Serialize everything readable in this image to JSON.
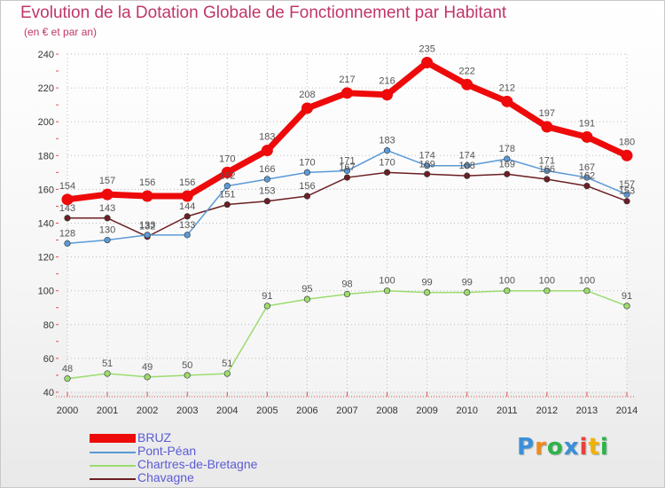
{
  "chart_data": {
    "type": "line",
    "title": "Evolution de la Dotation Globale de Fonctionnement par Habitant",
    "subtitle": "(en € et par an)",
    "xlabel": "",
    "ylabel": "",
    "x": [
      "2000",
      "2001",
      "2002",
      "2003",
      "2004",
      "2005",
      "2006",
      "2007",
      "2008",
      "2009",
      "2010",
      "2011",
      "2012",
      "2013",
      "2014"
    ],
    "ylim": [
      40,
      240
    ],
    "yticks": [
      40,
      60,
      80,
      100,
      120,
      140,
      160,
      180,
      200,
      220,
      240
    ],
    "grid": true,
    "legend_position": "bottom-left",
    "series": [
      {
        "name": "Chavagne",
        "color": "#6b1f24",
        "values": [
          143,
          143,
          132,
          144,
          151,
          153,
          156,
          167,
          170,
          169,
          168,
          169,
          166,
          162,
          153
        ],
        "labels": [
          "143",
          "143",
          "132",
          "144",
          "151",
          "153",
          "156",
          "167",
          "170",
          "169",
          "168",
          "169",
          "166",
          "162",
          "153"
        ]
      },
      {
        "name": "Pont-Péan",
        "color": "#5a9ad6",
        "values": [
          128,
          130,
          133,
          133,
          162,
          166,
          170,
          171,
          183,
          174,
          174,
          178,
          171,
          167,
          157
        ],
        "labels": [
          "128",
          "130",
          "133",
          "133",
          "162",
          "166",
          "170",
          "171",
          "183",
          "174",
          "174",
          "178",
          "171",
          "167",
          "157"
        ]
      },
      {
        "name": "Chartres-de-Bretagne",
        "color": "#9bdc6e",
        "values": [
          48,
          51,
          49,
          50,
          51,
          91,
          95,
          98,
          100,
          99,
          99,
          100,
          100,
          100,
          91
        ],
        "labels": [
          "48",
          "51",
          "49",
          "50",
          "51",
          "91",
          "95",
          "98",
          "100",
          "99",
          "99",
          "100",
          "100",
          "100",
          "91"
        ]
      },
      {
        "name": "BRUZ",
        "color": "#ee0a0a",
        "values": [
          154,
          157,
          156,
          156,
          170,
          183,
          208,
          217,
          216,
          235,
          222,
          212,
          197,
          191,
          180
        ],
        "labels": [
          "154",
          "157",
          "156",
          "156",
          "170",
          "183",
          "208",
          "217",
          "216",
          "235",
          "222",
          "212",
          "197",
          "191",
          "180"
        ]
      }
    ]
  },
  "legend": [
    {
      "name": "BRUZ",
      "color": "#ee0a0a"
    },
    {
      "name": "Pont-Péan",
      "color": "#5a9ad6"
    },
    {
      "name": "Chartres-de-Bretagne",
      "color": "#9bdc6e"
    },
    {
      "name": "Chavagne",
      "color": "#6b1f24"
    }
  ],
  "logo": {
    "text": "Proxiti",
    "colors": [
      "#3b8fd8",
      "#f08a1c",
      "#2fb34a",
      "#3b8fd8",
      "#e8413c",
      "#f2b300",
      "#2fb34a"
    ]
  }
}
